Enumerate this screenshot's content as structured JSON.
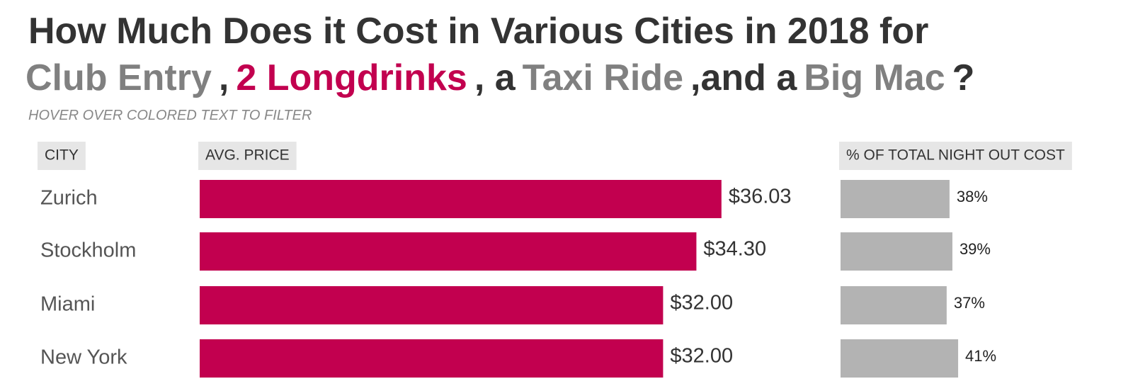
{
  "header": {
    "title_line1": "How Much Does it Cost in Various Cities in 2018 for",
    "title_line2": [
      {
        "text": "Club Entry",
        "color": "#808080",
        "filter": true
      },
      {
        "text": ",",
        "color": "#333333",
        "filter": false
      },
      {
        "text": "2 Longdrinks",
        "color": "#c2004f",
        "filter": true
      },
      {
        "text": ", a",
        "color": "#333333",
        "filter": false
      },
      {
        "text": "Taxi Ride",
        "color": "#808080",
        "filter": true
      },
      {
        "text": ",and a",
        "color": "#333333",
        "filter": false
      },
      {
        "text": "Big Mac",
        "color": "#808080",
        "filter": true
      },
      {
        "text": "?",
        "color": "#333333",
        "filter": false
      }
    ],
    "subtitle": "HOVER OVER COLORED TEXT TO FILTER"
  },
  "chart_data": [
    {
      "type": "bar",
      "orientation": "horizontal",
      "category_header": "CITY",
      "header": "AVG. PRICE",
      "categories": [
        "Zurich",
        "Stockholm",
        "Miami",
        "New York"
      ],
      "values": [
        36.03,
        34.3,
        32.0,
        32.0
      ],
      "value_labels": [
        "$36.03",
        "$34.30",
        "$32.00",
        "$32.00"
      ],
      "color": "#c2004f",
      "xlim": [
        0,
        40
      ]
    },
    {
      "type": "bar",
      "orientation": "horizontal",
      "header": "% OF TOTAL NIGHT OUT COST",
      "values": [
        38,
        39,
        37,
        41
      ],
      "value_labels": [
        "38%",
        "39%",
        "37%",
        "41%"
      ],
      "color": "#b3b3b3",
      "xlim": [
        0,
        100
      ]
    }
  ]
}
